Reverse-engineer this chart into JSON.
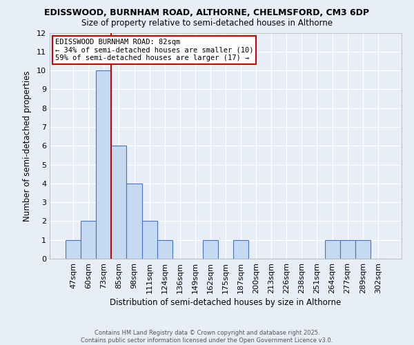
{
  "title_line1": "EDISSWOOD, BURNHAM ROAD, ALTHORNE, CHELMSFORD, CM3 6DP",
  "title_line2": "Size of property relative to semi-detached houses in Althorne",
  "categories": [
    "47sqm",
    "60sqm",
    "73sqm",
    "85sqm",
    "98sqm",
    "111sqm",
    "124sqm",
    "136sqm",
    "149sqm",
    "162sqm",
    "175sqm",
    "187sqm",
    "200sqm",
    "213sqm",
    "226sqm",
    "238sqm",
    "251sqm",
    "264sqm",
    "277sqm",
    "289sqm",
    "302sqm"
  ],
  "values": [
    1,
    2,
    10,
    6,
    4,
    2,
    1,
    0,
    0,
    1,
    0,
    1,
    0,
    0,
    0,
    0,
    0,
    1,
    1,
    1,
    0
  ],
  "bar_color": "#c5d9f1",
  "bar_edge_color": "#4472c4",
  "xlabel": "Distribution of semi-detached houses by size in Althorne",
  "ylabel": "Number of semi-detached properties",
  "ylim": [
    0,
    12
  ],
  "yticks": [
    0,
    1,
    2,
    3,
    4,
    5,
    6,
    7,
    8,
    9,
    10,
    11,
    12
  ],
  "property_line_x": 2.5,
  "annotation_text_line1": "EDISSWOOD BURNHAM ROAD: 82sqm",
  "annotation_text_line2": "← 34% of semi-detached houses are smaller (10)",
  "annotation_text_line3": "59% of semi-detached houses are larger (17) →",
  "footnote_line1": "Contains HM Land Registry data © Crown copyright and database right 2025.",
  "footnote_line2": "Contains public sector information licensed under the Open Government Licence v3.0.",
  "background_color": "#e8eef8",
  "plot_bg_color": "#e8eef8",
  "grid_color": "#ffffff",
  "line_color": "#cc0000"
}
